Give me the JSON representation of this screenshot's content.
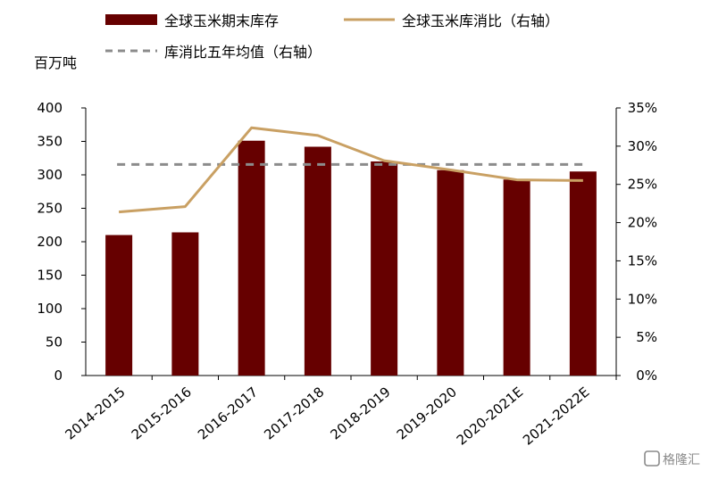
{
  "chart_data": {
    "type": "bar",
    "categories": [
      "2014-2015",
      "2015-2016",
      "2016-2017",
      "2017-2018",
      "2018-2019",
      "2019-2020",
      "2020-2021E",
      "2021-2022E"
    ],
    "series": [
      {
        "name": "全球玉米期末库存",
        "type": "bar",
        "axis": "left",
        "color": "#660000",
        "values": [
          210,
          214,
          351,
          342,
          320,
          307,
          293,
          305
        ]
      },
      {
        "name": "全球玉米库消比（右轴）",
        "type": "line",
        "axis": "right",
        "color": "#C9A063",
        "values": [
          21.4,
          22.1,
          32.4,
          31.4,
          28.1,
          26.9,
          25.6,
          25.5
        ]
      },
      {
        "name": "库消比五年均值（右轴）",
        "type": "line",
        "style": "dashed",
        "axis": "right",
        "color": "#8C8C8C",
        "values": [
          27.6,
          27.6,
          27.6,
          27.6,
          27.6,
          27.6,
          27.6,
          27.6
        ]
      }
    ],
    "ylabel": "百万吨",
    "ylim": [
      0,
      400
    ],
    "yticks": [
      "0",
      "50",
      "100",
      "150",
      "200",
      "250",
      "300",
      "350",
      "400"
    ],
    "y2lim": [
      0,
      35
    ],
    "y2ticks": [
      "0%",
      "5%",
      "10%",
      "15%",
      "20%",
      "25%",
      "30%",
      "35%"
    ],
    "legend_position": "top",
    "grid": false
  },
  "watermark": "格隆汇"
}
